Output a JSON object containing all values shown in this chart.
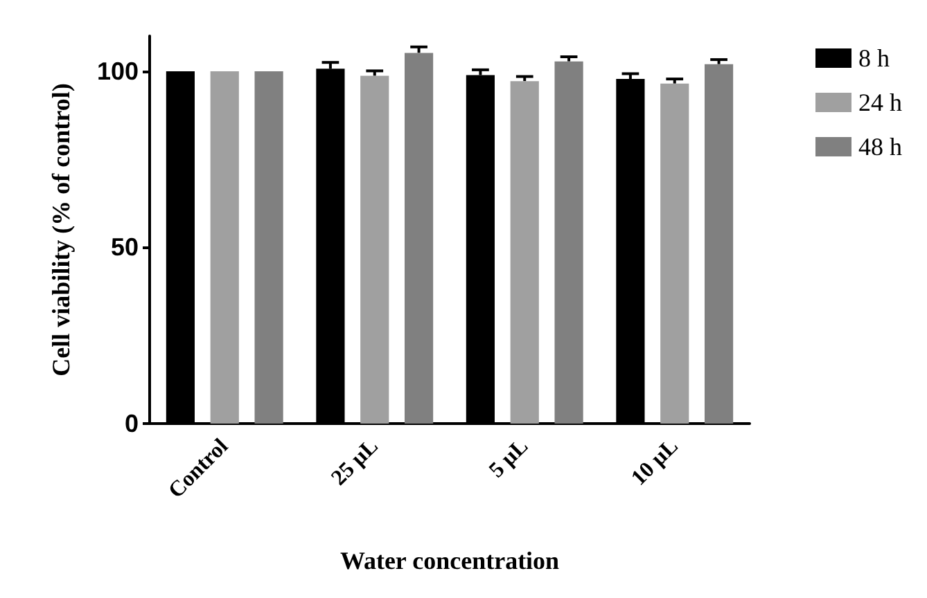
{
  "chart_data": {
    "type": "bar",
    "xlabel": "Water concentration",
    "ylabel": "Cell viability (% of control)",
    "categories": [
      "Control",
      "25 µL",
      "5 µL",
      "10 µL"
    ],
    "series": [
      {
        "name": "8 h",
        "color": "#000000",
        "values": [
          100,
          100.7,
          98.9,
          97.8
        ],
        "errors": [
          null,
          1.8,
          1.5,
          1.5
        ]
      },
      {
        "name": "24 h",
        "color": "#a0a0a0",
        "values": [
          100,
          98.7,
          97.2,
          96.5
        ],
        "errors": [
          null,
          1.4,
          1.3,
          1.3
        ]
      },
      {
        "name": "48 h",
        "color": "#808080",
        "values": [
          100,
          105.2,
          102.8,
          102
        ],
        "errors": [
          null,
          1.7,
          1.3,
          1.3
        ]
      }
    ],
    "ylim": [
      0,
      110
    ],
    "yticks": [
      0,
      50,
      100
    ],
    "legend": "right",
    "grid": false
  }
}
